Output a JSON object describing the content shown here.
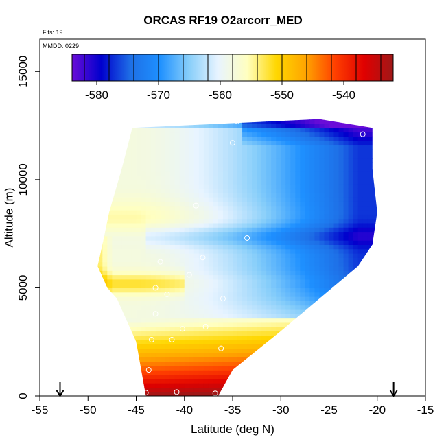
{
  "chart_data": {
    "type": "heatmap",
    "title": "ORCAS RF19 O2arcorr_MED",
    "flts_label": "Flts: 19",
    "mmdd_label": "MMDD: 0229",
    "xlabel": "Latitude (deg N)",
    "ylabel": "Altitude (m)",
    "xlim": [
      -55,
      -15
    ],
    "ylim": [
      0,
      16500
    ],
    "x_ticks": [
      -55,
      -50,
      -45,
      -40,
      -35,
      -30,
      -25,
      -20,
      -15
    ],
    "y_ticks": [
      0,
      5000,
      10000,
      15000
    ],
    "colorbar": {
      "range": [
        -584,
        -532
      ],
      "ticks": [
        -580,
        -570,
        -560,
        -550,
        -540
      ],
      "colors": [
        "#6a0dd8",
        "#0000cd",
        "#1e6fe6",
        "#1e90ff",
        "#87cefa",
        "#e8f4ff",
        "#ffffc0",
        "#ffd700",
        "#ffa500",
        "#ff4000",
        "#e00000",
        "#a01818"
      ]
    },
    "region": {
      "left_edge": [
        [
          -45.4,
          12400
        ],
        [
          -46.5,
          10500
        ],
        [
          -47.8,
          8500
        ],
        [
          -48.5,
          7000
        ],
        [
          -49,
          6000
        ],
        [
          -48,
          5000
        ],
        [
          -47,
          4500
        ],
        [
          -45,
          2500
        ],
        [
          -44,
          0
        ]
      ],
      "right_edge": [
        [
          -26,
          12800
        ],
        [
          -20.5,
          12400
        ],
        [
          -20.5,
          10500
        ],
        [
          -20,
          8500
        ],
        [
          -20.5,
          7000
        ],
        [
          -22,
          6000
        ],
        [
          -30,
          3000
        ],
        [
          -35,
          1200
        ],
        [
          -36.5,
          0
        ]
      ]
    },
    "observations": [
      {
        "lat": -50.2,
        "alt": 12300
      },
      {
        "lat": -48.0,
        "alt": 12500
      },
      {
        "lat": -46.8,
        "alt": 11100
      },
      {
        "lat": -34.5,
        "alt": 12700
      },
      {
        "lat": -35.0,
        "alt": 11700
      },
      {
        "lat": -21.5,
        "alt": 12100
      },
      {
        "lat": -38.8,
        "alt": 8800
      },
      {
        "lat": -33.5,
        "alt": 7300
      },
      {
        "lat": -19.9,
        "alt": 6900
      },
      {
        "lat": -38.1,
        "alt": 6400
      },
      {
        "lat": -42.5,
        "alt": 6200
      },
      {
        "lat": -39.5,
        "alt": 5600
      },
      {
        "lat": -43.0,
        "alt": 5000
      },
      {
        "lat": -41.8,
        "alt": 4700
      },
      {
        "lat": -36.0,
        "alt": 4500
      },
      {
        "lat": -43.0,
        "alt": 3800
      },
      {
        "lat": -40.2,
        "alt": 3100
      },
      {
        "lat": -37.8,
        "alt": 3200
      },
      {
        "lat": -43.4,
        "alt": 2600
      },
      {
        "lat": -41.3,
        "alt": 2600
      },
      {
        "lat": -36.2,
        "alt": 2200
      },
      {
        "lat": -43.7,
        "alt": 1200
      },
      {
        "lat": -44.0,
        "alt": 150
      },
      {
        "lat": -40.8,
        "alt": 180
      },
      {
        "lat": -36.8,
        "alt": 120
      }
    ],
    "markers": [
      {
        "type": "arrow-down",
        "lat": -52.9
      },
      {
        "type": "arrow-down",
        "lat": -18.3
      }
    ]
  }
}
